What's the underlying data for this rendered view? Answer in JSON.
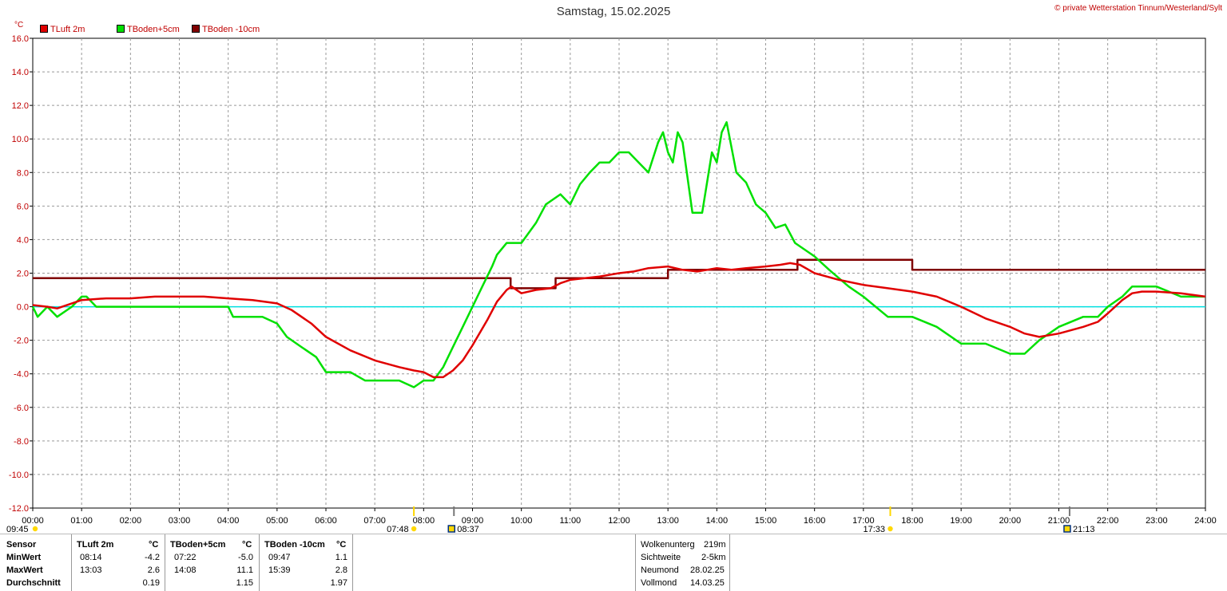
{
  "header": {
    "title": "Samstag, 15.02.2025",
    "credit": "© private Wetterstation Tinnum/Westerland/Sylt",
    "y_unit": "°C"
  },
  "chart_data": {
    "type": "line",
    "title": "Samstag, 15.02.2025",
    "ylabel": "°C",
    "ylim": [
      -12,
      16
    ],
    "xlim": [
      0,
      24
    ],
    "y_ticks": [
      "16.0",
      "14.0",
      "12.0",
      "10.0",
      "8.0",
      "6.0",
      "4.0",
      "2.0",
      "0.0",
      "-2.0",
      "-4.0",
      "-6.0",
      "-8.0",
      "-10.0",
      "-12.0"
    ],
    "x_ticks": [
      "00:00",
      "01:00",
      "02:00",
      "03:00",
      "04:00",
      "05:00",
      "06:00",
      "07:00",
      "08:00",
      "09:00",
      "10:00",
      "11:00",
      "12:00",
      "13:00",
      "14:00",
      "15:00",
      "16:00",
      "17:00",
      "18:00",
      "19:00",
      "20:00",
      "21:00",
      "22:00",
      "23:00",
      "24:00"
    ],
    "grid": true,
    "legend_position": "top-left",
    "zero_line_color": "#00e0e0",
    "series": [
      {
        "name": "TLuft 2m",
        "color": "#e00000",
        "x": [
          0,
          0.3,
          0.5,
          0.8,
          1.0,
          1.5,
          2.0,
          2.5,
          3.0,
          3.5,
          4.0,
          4.5,
          5.0,
          5.3,
          5.7,
          6.0,
          6.5,
          7.0,
          7.5,
          7.8,
          8.0,
          8.2,
          8.4,
          8.6,
          8.8,
          9.0,
          9.3,
          9.5,
          9.7,
          9.8,
          10.0,
          10.3,
          10.6,
          10.8,
          11.0,
          11.3,
          11.6,
          12.0,
          12.3,
          12.6,
          13.0,
          13.3,
          13.6,
          14.0,
          14.3,
          14.6,
          15.0,
          15.3,
          15.5,
          15.7,
          16.0,
          16.5,
          17.0,
          17.5,
          18.0,
          18.5,
          19.0,
          19.5,
          20.0,
          20.3,
          20.6,
          21.0,
          21.5,
          21.8,
          22.0,
          22.3,
          22.5,
          22.7,
          23.0,
          23.5,
          24.0
        ],
        "values": [
          0.1,
          0.0,
          -0.1,
          0.2,
          0.4,
          0.5,
          0.5,
          0.6,
          0.6,
          0.6,
          0.5,
          0.4,
          0.2,
          -0.2,
          -1.0,
          -1.8,
          -2.6,
          -3.2,
          -3.6,
          -3.8,
          -3.9,
          -4.2,
          -4.2,
          -3.8,
          -3.2,
          -2.3,
          -0.8,
          0.3,
          1.0,
          1.2,
          0.8,
          1.0,
          1.1,
          1.4,
          1.6,
          1.7,
          1.8,
          2.0,
          2.1,
          2.3,
          2.4,
          2.2,
          2.1,
          2.3,
          2.2,
          2.3,
          2.4,
          2.5,
          2.6,
          2.5,
          2.0,
          1.6,
          1.3,
          1.1,
          0.9,
          0.6,
          0.0,
          -0.7,
          -1.2,
          -1.6,
          -1.8,
          -1.6,
          -1.2,
          -0.9,
          -0.4,
          0.4,
          0.8,
          0.9,
          0.9,
          0.8,
          0.6
        ]
      },
      {
        "name": "TBoden+5cm",
        "color": "#00e000",
        "x": [
          0,
          0.1,
          0.3,
          0.5,
          0.8,
          1.0,
          1.1,
          1.3,
          2.0,
          3.0,
          4.0,
          4.1,
          4.7,
          5.0,
          5.2,
          5.5,
          5.8,
          6.0,
          6.5,
          6.8,
          7.0,
          7.5,
          7.8,
          8.0,
          8.2,
          8.4,
          8.5,
          8.6,
          8.8,
          9.0,
          9.2,
          9.4,
          9.5,
          9.7,
          9.8,
          10.0,
          10.3,
          10.5,
          10.8,
          11.0,
          11.2,
          11.4,
          11.6,
          11.8,
          12.0,
          12.2,
          12.4,
          12.6,
          12.8,
          12.9,
          13.0,
          13.1,
          13.2,
          13.3,
          13.5,
          13.7,
          13.9,
          14.0,
          14.1,
          14.2,
          14.4,
          14.6,
          14.8,
          15.0,
          15.2,
          15.4,
          15.6,
          16.0,
          16.3,
          16.7,
          17.0,
          17.5,
          18.0,
          18.5,
          19.0,
          19.5,
          20.0,
          20.3,
          20.6,
          21.0,
          21.5,
          21.8,
          22.0,
          22.3,
          22.5,
          23.0,
          23.5,
          24.0
        ],
        "values": [
          0.0,
          -0.6,
          0.0,
          -0.6,
          0.0,
          0.6,
          0.6,
          0.0,
          0.0,
          0.0,
          0.0,
          -0.6,
          -0.6,
          -1.0,
          -1.8,
          -2.4,
          -3.0,
          -3.9,
          -3.9,
          -4.4,
          -4.4,
          -4.4,
          -4.8,
          -4.4,
          -4.4,
          -3.6,
          -3.0,
          -2.4,
          -1.2,
          0.0,
          1.2,
          2.4,
          3.1,
          3.8,
          3.8,
          3.8,
          5.0,
          6.1,
          6.7,
          6.1,
          7.3,
          8.0,
          8.6,
          8.6,
          9.2,
          9.2,
          8.6,
          8.0,
          9.8,
          10.4,
          9.2,
          8.6,
          10.4,
          9.8,
          5.6,
          5.6,
          9.2,
          8.6,
          10.4,
          11.0,
          8.0,
          7.4,
          6.1,
          5.6,
          4.7,
          4.9,
          3.8,
          3.0,
          2.2,
          1.2,
          0.6,
          -0.6,
          -0.6,
          -1.2,
          -2.2,
          -2.2,
          -2.8,
          -2.8,
          -2.0,
          -1.2,
          -0.6,
          -0.6,
          0.0,
          0.6,
          1.2,
          1.2,
          0.6,
          0.6
        ]
      },
      {
        "name": "TBoden -10cm",
        "color": "#800000",
        "x": [
          0,
          9.78,
          9.78,
          10.7,
          10.7,
          13.0,
          13.0,
          15.65,
          15.65,
          18.0,
          18.0,
          24.0
        ],
        "values": [
          1.7,
          1.7,
          1.1,
          1.1,
          1.7,
          1.7,
          2.2,
          2.2,
          2.8,
          2.8,
          2.2,
          2.2
        ]
      }
    ],
    "markers": [
      {
        "label": "09:45",
        "x": 0.0,
        "kind": "sun"
      },
      {
        "label": "07:48",
        "x": 7.8,
        "kind": "sunrise"
      },
      {
        "label": "08:37",
        "x": 8.62,
        "kind": "moon"
      },
      {
        "label": "17:33",
        "x": 17.55,
        "kind": "sunset"
      },
      {
        "label": "21:13",
        "x": 21.22,
        "kind": "moon"
      }
    ]
  },
  "stats": {
    "headers": [
      "Sensor",
      "TLuft 2m",
      "°C",
      "TBoden+5cm",
      "°C",
      "TBoden -10cm",
      "°C"
    ],
    "rows": [
      {
        "label": "MinWert",
        "t1": "08:14",
        "v1": "-4.2",
        "t2": "07:22",
        "v2": "-5.0",
        "t3": "09:47",
        "v3": "1.1"
      },
      {
        "label": "MaxWert",
        "t1": "13:03",
        "v1": "2.6",
        "t2": "14:08",
        "v2": "11.1",
        "t3": "15:39",
        "v3": "2.8"
      },
      {
        "label": "Durchschnitt",
        "t1": "",
        "v1": "0.19",
        "t2": "",
        "v2": "1.15",
        "t3": "",
        "v3": "1.97"
      }
    ]
  },
  "info": [
    {
      "label": "Wolkenunterg",
      "value": "219m"
    },
    {
      "label": "Sichtweite",
      "value": "2-5km"
    },
    {
      "label": "Neumond",
      "value": "28.02.25"
    },
    {
      "label": "Vollmond",
      "value": "14.03.25"
    }
  ]
}
